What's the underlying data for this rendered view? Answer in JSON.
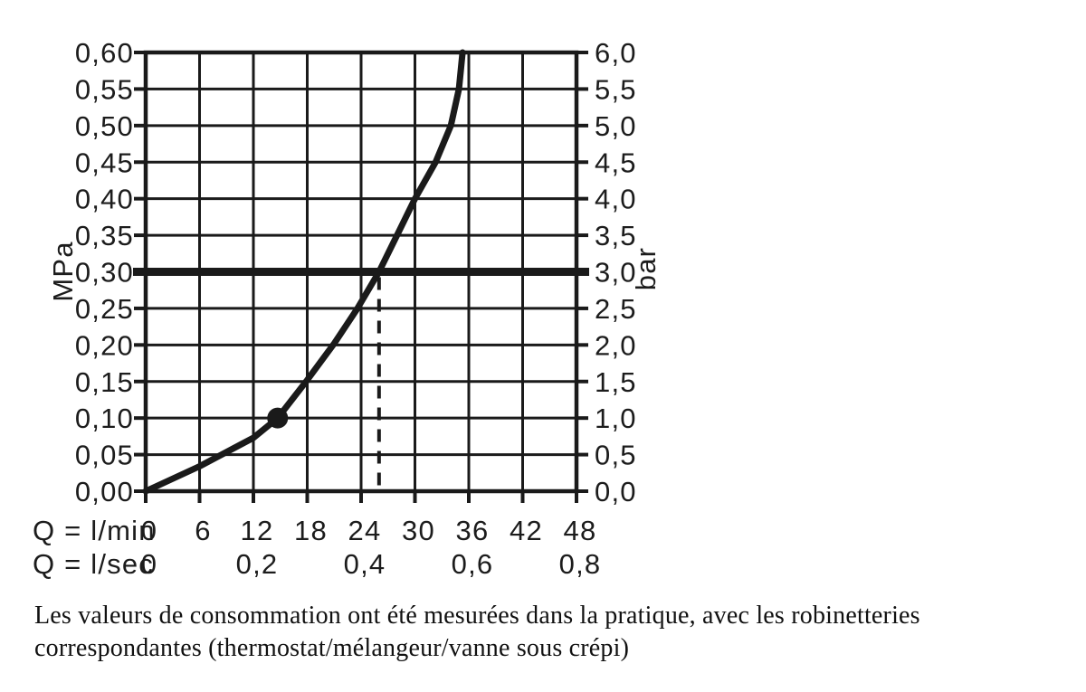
{
  "chart_data": {
    "type": "line",
    "title": "",
    "grid": true,
    "line_color": "#1a1a1a",
    "x_axis_lmin": {
      "label": "Q = l/min",
      "min": 0,
      "max": 48,
      "tick_step": 6,
      "tick_labels": [
        "0",
        "6",
        "12",
        "18",
        "24",
        "30",
        "36",
        "42",
        "48"
      ]
    },
    "x_axis_lsec": {
      "label": "Q = l/sec",
      "tick_labels": [
        {
          "at_lmin": 0,
          "label": "0"
        },
        {
          "at_lmin": 12,
          "label": "0,2"
        },
        {
          "at_lmin": 24,
          "label": "0,4"
        },
        {
          "at_lmin": 36,
          "label": "0,6"
        },
        {
          "at_lmin": 48,
          "label": "0,8"
        }
      ]
    },
    "y_axis_left": {
      "label": "MPa",
      "min": 0,
      "max": 0.6,
      "tick_step": 0.05,
      "tick_labels_top_to_bottom": [
        "0,60",
        "0,55",
        "0,50",
        "0,45",
        "0,40",
        "0,35",
        "0,30",
        "0,25",
        "0,20",
        "0,15",
        "0,10",
        "0,05",
        "0,00"
      ]
    },
    "y_axis_right": {
      "label": "bar",
      "min": 0,
      "max": 6,
      "tick_step": 0.5,
      "tick_labels_top_to_bottom": [
        "6,0",
        "5,5",
        "5,0",
        "4,5",
        "4,0",
        "3,5",
        "3,0",
        "2,5",
        "2,0",
        "1,5",
        "1,0",
        "0,5",
        "0,0"
      ]
    },
    "series": [
      {
        "name": "flow-pressure-curve",
        "points_lmin_mpa": [
          [
            0,
            0.0
          ],
          [
            6,
            0.034
          ],
          [
            12,
            0.073
          ],
          [
            14.7,
            0.1
          ],
          [
            18,
            0.152
          ],
          [
            21,
            0.202
          ],
          [
            23.6,
            0.25
          ],
          [
            26,
            0.3
          ],
          [
            28,
            0.35
          ],
          [
            30,
            0.4
          ],
          [
            32.3,
            0.45
          ],
          [
            34,
            0.5
          ],
          [
            34.9,
            0.55
          ],
          [
            35.3,
            0.6
          ]
        ]
      }
    ],
    "marker_point_lmin_mpa": [
      14.7,
      0.1
    ],
    "reference_line_mpa": 0.3,
    "dashed_guide_lmin": 26
  },
  "caption": {
    "line1": "Les valeurs de consommation ont été mesurées dans la pratique, avec les robinetteries",
    "line2": "correspondantes (thermostat/mélangeur/vanne sous crépi)"
  }
}
